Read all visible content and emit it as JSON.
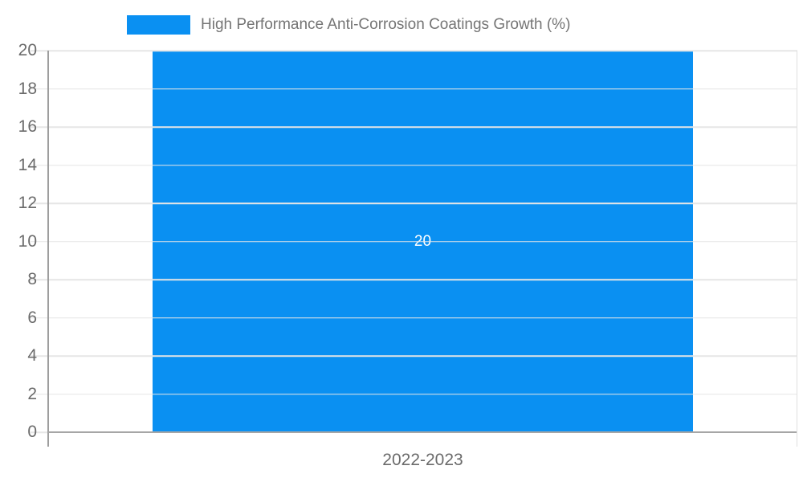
{
  "legend": {
    "label": "High Performance Anti-Corrosion Coatings Growth (%)"
  },
  "colors": {
    "bar": "#0a90f2",
    "grid": "#e6e6e6",
    "axis": "#9e9e9e",
    "tick_text": "#6b6b6b",
    "legend_text": "#757575",
    "bar_label_text": "#ffffff"
  },
  "chart_data": {
    "type": "bar",
    "title": "High Performance Anti-Corrosion Coatings Growth (%)",
    "categories": [
      "2022-2023"
    ],
    "values": [
      20
    ],
    "series": [
      {
        "name": "High Performance Anti-Corrosion Coatings Growth (%)",
        "values": [
          20
        ]
      }
    ],
    "xlabel": "",
    "ylabel": "",
    "ylim": [
      0,
      20
    ],
    "y_ticks": [
      0,
      2,
      4,
      6,
      8,
      10,
      12,
      14,
      16,
      18,
      20
    ],
    "grid": true,
    "legend_position": "top",
    "data_labels": [
      "20"
    ]
  },
  "x_axis": {
    "label": "2022-2023"
  }
}
